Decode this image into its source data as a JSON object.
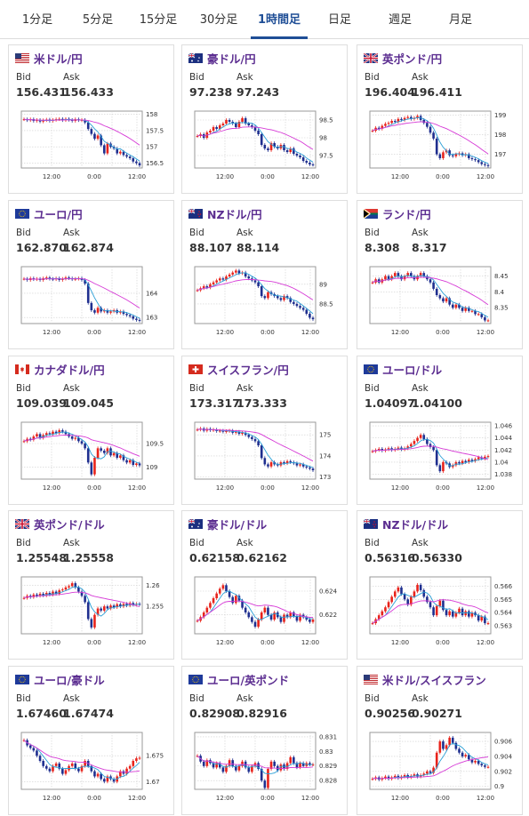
{
  "tabs": [
    {
      "label": "1分足"
    },
    {
      "label": "5分足"
    },
    {
      "label": "15分足"
    },
    {
      "label": "30分足"
    },
    {
      "label": "1時間足"
    },
    {
      "label": "日足"
    },
    {
      "label": "週足"
    },
    {
      "label": "月足"
    }
  ],
  "active_tab": "1時間足",
  "labels": {
    "bid": "Bid",
    "ask": "Ask"
  },
  "colors": {
    "up": "#e8231b",
    "down": "#1f2f8f",
    "ma_short": "#2a9fd6",
    "ma_long": "#d63ad6",
    "pair": "#5b2d90",
    "active_tab": "#1f4e96"
  },
  "cards": [
    {
      "pair": "米ドル/円",
      "flag": "us-flag-icon",
      "bid": "156.431",
      "ask": "156.433",
      "chart_data": {
        "type": "candlestick",
        "x_ticks": [
          "12:00",
          "0:00",
          "12:00"
        ],
        "y_ticks": [
          "158",
          "157.5",
          "157",
          "156.5"
        ],
        "ylim": [
          156.35,
          158.1
        ],
        "grid": true,
        "closes": [
          157.85,
          157.82,
          157.85,
          157.8,
          157.83,
          157.78,
          157.82,
          157.84,
          157.8,
          157.83,
          157.85,
          157.86,
          157.82,
          157.86,
          157.83,
          157.8,
          157.85,
          157.82,
          157.83,
          157.75,
          157.55,
          157.4,
          157.25,
          157.35,
          157.05,
          156.8,
          157.1,
          157.0,
          156.95,
          156.8,
          156.85,
          156.75,
          156.7,
          156.65,
          156.55,
          156.5,
          156.43
        ]
      }
    },
    {
      "pair": "豪ドル/円",
      "flag": "au-flag-icon",
      "bid": "97.238",
      "ask": "97.243",
      "chart_data": {
        "type": "candlestick",
        "x_ticks": [
          "12:00",
          "0:00",
          "12:00"
        ],
        "y_ticks": [
          "98.5",
          "98",
          "97.5"
        ],
        "ylim": [
          97.15,
          98.75
        ],
        "grid": true,
        "closes": [
          98.05,
          98.1,
          98.0,
          98.15,
          98.2,
          98.3,
          98.25,
          98.35,
          98.4,
          98.5,
          98.45,
          98.4,
          98.3,
          98.45,
          98.55,
          98.4,
          98.35,
          98.3,
          98.2,
          98.1,
          97.8,
          97.7,
          97.65,
          97.85,
          97.75,
          97.7,
          97.8,
          97.65,
          97.6,
          97.7,
          97.55,
          97.5,
          97.45,
          97.35,
          97.3,
          97.25,
          97.24
        ]
      }
    },
    {
      "pair": "英ポンド/円",
      "flag": "gb-flag-icon",
      "bid": "196.404",
      "ask": "196.411",
      "chart_data": {
        "type": "candlestick",
        "x_ticks": [
          "12:00",
          "0:00",
          "12:00"
        ],
        "y_ticks": [
          "199",
          "198",
          "197"
        ],
        "ylim": [
          196.3,
          199.2
        ],
        "grid": true,
        "closes": [
          198.2,
          198.35,
          198.3,
          198.45,
          198.55,
          198.6,
          198.7,
          198.65,
          198.8,
          198.75,
          198.85,
          198.9,
          198.8,
          198.85,
          198.95,
          198.75,
          198.6,
          198.4,
          198.1,
          197.8,
          197.0,
          196.8,
          197.1,
          197.2,
          196.95,
          196.9,
          197.0,
          197.05,
          196.95,
          197.0,
          196.8,
          196.75,
          196.7,
          196.6,
          196.5,
          196.45,
          196.4
        ]
      }
    },
    {
      "pair": "ユーロ/円",
      "flag": "eu-flag-icon",
      "bid": "162.870",
      "ask": "162.874",
      "chart_data": {
        "type": "candlestick",
        "x_ticks": [
          "12:00",
          "0:00",
          "12:00"
        ],
        "y_ticks": [
          "164",
          "163"
        ],
        "ylim": [
          162.75,
          165.1
        ],
        "grid": true,
        "closes": [
          164.6,
          164.55,
          164.62,
          164.58,
          164.6,
          164.55,
          164.62,
          164.65,
          164.6,
          164.58,
          164.62,
          164.55,
          164.6,
          164.65,
          164.62,
          164.58,
          164.6,
          164.62,
          164.55,
          164.4,
          163.6,
          163.3,
          163.2,
          163.4,
          163.25,
          163.3,
          163.2,
          163.25,
          163.3,
          163.2,
          163.25,
          163.15,
          163.1,
          163.05,
          162.95,
          162.9,
          162.87
        ]
      }
    },
    {
      "pair": "NZドル/円",
      "flag": "nz-flag-icon",
      "bid": "88.107",
      "ask": "88.114",
      "chart_data": {
        "type": "candlestick",
        "x_ticks": [
          "12:00",
          "0:00",
          "12:00"
        ],
        "y_ticks": [
          "89",
          "88.5"
        ],
        "ylim": [
          88.0,
          89.45
        ],
        "grid": true,
        "closes": [
          88.85,
          88.9,
          88.95,
          88.92,
          89.0,
          89.05,
          89.1,
          89.15,
          89.12,
          89.2,
          89.25,
          89.3,
          89.35,
          89.28,
          89.3,
          89.2,
          89.15,
          89.1,
          89.05,
          88.95,
          88.7,
          88.65,
          88.8,
          88.75,
          88.7,
          88.65,
          88.6,
          88.7,
          88.65,
          88.55,
          88.5,
          88.45,
          88.4,
          88.35,
          88.25,
          88.15,
          88.11
        ]
      }
    },
    {
      "pair": "ランド/円",
      "flag": "za-flag-icon",
      "bid": "8.308",
      "ask": "8.317",
      "chart_data": {
        "type": "candlestick",
        "x_ticks": [
          "12:00",
          "0:00",
          "12:00"
        ],
        "y_ticks": [
          "8.45",
          "8.4",
          "8.35"
        ],
        "ylim": [
          8.3,
          8.48
        ],
        "grid": true,
        "closes": [
          8.43,
          8.44,
          8.43,
          8.44,
          8.45,
          8.44,
          8.45,
          8.46,
          8.45,
          8.44,
          8.45,
          8.46,
          8.45,
          8.44,
          8.45,
          8.46,
          8.45,
          8.44,
          8.43,
          8.41,
          8.39,
          8.38,
          8.37,
          8.38,
          8.36,
          8.35,
          8.36,
          8.35,
          8.34,
          8.35,
          8.34,
          8.34,
          8.33,
          8.33,
          8.32,
          8.31,
          8.31
        ]
      }
    },
    {
      "pair": "カナダドル/円",
      "flag": "ca-flag-icon",
      "bid": "109.039",
      "ask": "109.045",
      "chart_data": {
        "type": "candlestick",
        "x_ticks": [
          "12:00",
          "0:00",
          "12:00"
        ],
        "y_ticks": [
          "109.5",
          "109"
        ],
        "ylim": [
          108.75,
          109.95
        ],
        "grid": true,
        "closes": [
          109.55,
          109.6,
          109.58,
          109.65,
          109.7,
          109.62,
          109.68,
          109.72,
          109.7,
          109.75,
          109.72,
          109.78,
          109.75,
          109.7,
          109.65,
          109.6,
          109.62,
          109.55,
          109.5,
          109.4,
          109.1,
          108.85,
          109.2,
          109.4,
          109.35,
          109.3,
          109.4,
          109.25,
          109.3,
          109.2,
          109.25,
          109.15,
          109.1,
          109.15,
          109.05,
          109.08,
          109.04
        ]
      }
    },
    {
      "pair": "スイスフラン/円",
      "flag": "ch-flag-icon",
      "bid": "173.317",
      "ask": "173.333",
      "chart_data": {
        "type": "candlestick",
        "x_ticks": [
          "12:00",
          "0:00",
          "12:00"
        ],
        "y_ticks": [
          "175",
          "174",
          "173"
        ],
        "ylim": [
          172.9,
          175.6
        ],
        "grid": true,
        "closes": [
          175.25,
          175.3,
          175.2,
          175.28,
          175.22,
          175.25,
          175.18,
          175.2,
          175.15,
          175.18,
          175.2,
          175.1,
          175.15,
          175.05,
          175.1,
          175.0,
          174.9,
          174.8,
          174.7,
          174.5,
          173.9,
          173.6,
          173.5,
          173.7,
          173.6,
          173.55,
          173.7,
          173.65,
          173.75,
          173.7,
          173.65,
          173.55,
          173.6,
          173.5,
          173.45,
          173.4,
          173.32
        ]
      }
    },
    {
      "pair": "ユーロ/ドル",
      "flag": "eu-flag-icon",
      "bid": "1.04097",
      "ask": "1.04100",
      "chart_data": {
        "type": "candlestick",
        "x_ticks": [
          "12:00",
          "0:00",
          "12:00"
        ],
        "y_ticks": [
          "1.046",
          "1.044",
          "1.042",
          "1.04",
          "1.038"
        ],
        "ylim": [
          1.0372,
          1.0466
        ],
        "grid": true,
        "closes": [
          1.0418,
          1.042,
          1.0422,
          1.0419,
          1.0421,
          1.0423,
          1.042,
          1.0422,
          1.0424,
          1.0421,
          1.0423,
          1.0426,
          1.043,
          1.0435,
          1.044,
          1.0445,
          1.0438,
          1.043,
          1.0425,
          1.042,
          1.0395,
          1.0385,
          1.04,
          1.0398,
          1.0392,
          1.0395,
          1.04,
          1.0398,
          1.0402,
          1.04,
          1.0404,
          1.0402,
          1.0405,
          1.0408,
          1.0406,
          1.0409,
          1.041
        ]
      }
    },
    {
      "pair": "英ポンド/ドル",
      "flag": "gb-flag-icon",
      "bid": "1.25548",
      "ask": "1.25558",
      "chart_data": {
        "type": "candlestick",
        "x_ticks": [
          "12:00",
          "0:00",
          "12:00"
        ],
        "y_ticks": [
          "1.26",
          "1.255"
        ],
        "ylim": [
          1.2485,
          1.262
        ],
        "grid": true,
        "closes": [
          1.257,
          1.2575,
          1.2572,
          1.2578,
          1.2575,
          1.258,
          1.2576,
          1.2582,
          1.2578,
          1.2585,
          1.258,
          1.2588,
          1.259,
          1.2595,
          1.2598,
          1.2605,
          1.2595,
          1.2585,
          1.2575,
          1.256,
          1.252,
          1.25,
          1.253,
          1.2545,
          1.254,
          1.255,
          1.2545,
          1.2552,
          1.2548,
          1.2555,
          1.255,
          1.2556,
          1.2552,
          1.2558,
          1.2554,
          1.2556,
          1.2555
        ]
      }
    },
    {
      "pair": "豪ドル/ドル",
      "flag": "au-flag-icon",
      "bid": "0.62158",
      "ask": "0.62162",
      "chart_data": {
        "type": "candlestick",
        "x_ticks": [
          "12:00",
          "0:00",
          "12:00"
        ],
        "y_ticks": [
          "0.624",
          "0.622"
        ],
        "ylim": [
          0.6204,
          0.6252
        ],
        "grid": true,
        "closes": [
          0.6215,
          0.6218,
          0.6222,
          0.6226,
          0.623,
          0.6234,
          0.6238,
          0.6242,
          0.6245,
          0.624,
          0.6235,
          0.623,
          0.6236,
          0.6232,
          0.6226,
          0.6222,
          0.6218,
          0.6214,
          0.621,
          0.6216,
          0.6222,
          0.6226,
          0.622,
          0.6216,
          0.6222,
          0.6218,
          0.6214,
          0.622,
          0.6218,
          0.6222,
          0.6219,
          0.6215,
          0.622,
          0.6218,
          0.6216,
          0.6214,
          0.6216
        ]
      }
    },
    {
      "pair": "NZドル/ドル",
      "flag": "nz-flag-icon",
      "bid": "0.56316",
      "ask": "0.56330",
      "chart_data": {
        "type": "candlestick",
        "x_ticks": [
          "12:00",
          "0:00",
          "12:00"
        ],
        "y_ticks": [
          "0.566",
          "0.565",
          "0.564",
          "0.563"
        ],
        "ylim": [
          0.5624,
          0.5667
        ],
        "grid": true,
        "closes": [
          0.5632,
          0.5635,
          0.5638,
          0.5641,
          0.5644,
          0.5648,
          0.5652,
          0.5656,
          0.5659,
          0.5654,
          0.565,
          0.5646,
          0.5652,
          0.5656,
          0.5661,
          0.5657,
          0.5652,
          0.5648,
          0.5644,
          0.5638,
          0.5645,
          0.5649,
          0.5642,
          0.5638,
          0.5641,
          0.5637,
          0.564,
          0.5643,
          0.5638,
          0.5641,
          0.5637,
          0.564,
          0.5638,
          0.5634,
          0.5637,
          0.5632,
          0.5632
        ]
      }
    },
    {
      "pair": "ユーロ/豪ドル",
      "flag": "eu-flag-icon",
      "bid": "1.67460",
      "ask": "1.67474",
      "chart_data": {
        "type": "candlestick",
        "x_ticks": [
          "12:00",
          "0:00",
          "12:00"
        ],
        "y_ticks": [
          "1.675",
          "1.67"
        ],
        "ylim": [
          1.6685,
          1.6795
        ],
        "grid": true,
        "closes": [
          1.678,
          1.677,
          1.6765,
          1.676,
          1.675,
          1.674,
          1.673,
          1.6725,
          1.672,
          1.673,
          1.6735,
          1.6725,
          1.6715,
          1.6722,
          1.673,
          1.6735,
          1.6725,
          1.672,
          1.673,
          1.674,
          1.673,
          1.672,
          1.671,
          1.6715,
          1.6705,
          1.67,
          1.671,
          1.6705,
          1.67,
          1.671,
          1.672,
          1.6715,
          1.6725,
          1.673,
          1.674,
          1.6745,
          1.6746
        ]
      }
    },
    {
      "pair": "ユーロ/英ポンド",
      "flag": "eu-flag-icon",
      "bid": "0.82908",
      "ask": "0.82916",
      "chart_data": {
        "type": "candlestick",
        "x_ticks": [
          "12:00",
          "0:00",
          "12:00"
        ],
        "y_ticks": [
          "0.831",
          "0.83",
          "0.829",
          "0.828"
        ],
        "ylim": [
          0.8274,
          0.8313
        ],
        "grid": true,
        "closes": [
          0.8297,
          0.8293,
          0.829,
          0.8294,
          0.8292,
          0.8289,
          0.8292,
          0.8289,
          0.8286,
          0.829,
          0.8294,
          0.829,
          0.8287,
          0.829,
          0.8293,
          0.8289,
          0.8286,
          0.829,
          0.8292,
          0.8288,
          0.828,
          0.8275,
          0.8288,
          0.8293,
          0.829,
          0.8287,
          0.8291,
          0.8288,
          0.8292,
          0.8296,
          0.8292,
          0.8289,
          0.8292,
          0.829,
          0.8292,
          0.8291,
          0.8291
        ]
      }
    },
    {
      "pair": "米ドル/スイスフラン",
      "flag": "us-flag-icon",
      "bid": "0.90256",
      "ask": "0.90271",
      "chart_data": {
        "type": "candlestick",
        "x_ticks": [
          "12:00",
          "0:00",
          "12:00"
        ],
        "y_ticks": [
          "0.906",
          "0.904",
          "0.902",
          "0.9"
        ],
        "ylim": [
          0.8996,
          0.9072
        ],
        "grid": true,
        "closes": [
          0.901,
          0.9012,
          0.9009,
          0.9011,
          0.9013,
          0.901,
          0.9012,
          0.9014,
          0.9011,
          0.9013,
          0.9015,
          0.9012,
          0.9014,
          0.9016,
          0.9013,
          0.9015,
          0.9017,
          0.902,
          0.9018,
          0.9025,
          0.9045,
          0.906,
          0.905,
          0.9055,
          0.9065,
          0.9058,
          0.905,
          0.9045,
          0.904,
          0.9042,
          0.9036,
          0.9032,
          0.9034,
          0.903,
          0.9028,
          0.9026,
          0.9026
        ]
      }
    }
  ]
}
